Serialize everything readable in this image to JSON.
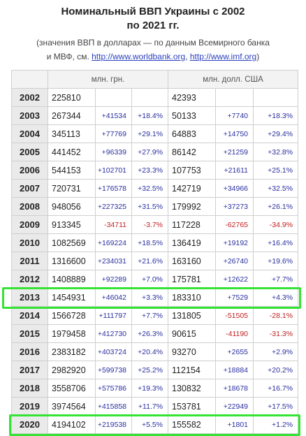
{
  "title": {
    "line1": "Номинальный ВВП Украины с 2002",
    "line2": "по 2021 гг."
  },
  "note": {
    "line1": "(значения ВВП в долларах — по данным Всемирного банка",
    "line2_prefix": "и МВФ, см. ",
    "link1": "http://www.worldbank.org",
    "sep": ", ",
    "link2": "http://www.imf.org",
    "suffix": ")"
  },
  "table": {
    "headers": {
      "uah": "млн. грн.",
      "usd": "млн. долл. США"
    },
    "rows": [
      {
        "year": "2002",
        "uah": "225810",
        "uah_diff": "",
        "uah_pct": "",
        "usd": "42393",
        "usd_diff": "",
        "usd_pct": "",
        "uah_neg": false,
        "usd_neg": false
      },
      {
        "year": "2003",
        "uah": "267344",
        "uah_diff": "+41534",
        "uah_pct": "+18.4%",
        "usd": "50133",
        "usd_diff": "+7740",
        "usd_pct": "+18.3%",
        "uah_neg": false,
        "usd_neg": false
      },
      {
        "year": "2004",
        "uah": "345113",
        "uah_diff": "+77769",
        "uah_pct": "+29.1%",
        "usd": "64883",
        "usd_diff": "+14750",
        "usd_pct": "+29.4%",
        "uah_neg": false,
        "usd_neg": false
      },
      {
        "year": "2005",
        "uah": "441452",
        "uah_diff": "+96339",
        "uah_pct": "+27.9%",
        "usd": "86142",
        "usd_diff": "+21259",
        "usd_pct": "+32.8%",
        "uah_neg": false,
        "usd_neg": false
      },
      {
        "year": "2006",
        "uah": "544153",
        "uah_diff": "+102701",
        "uah_pct": "+23.3%",
        "usd": "107753",
        "usd_diff": "+21611",
        "usd_pct": "+25.1%",
        "uah_neg": false,
        "usd_neg": false
      },
      {
        "year": "2007",
        "uah": "720731",
        "uah_diff": "+176578",
        "uah_pct": "+32.5%",
        "usd": "142719",
        "usd_diff": "+34966",
        "usd_pct": "+32.5%",
        "uah_neg": false,
        "usd_neg": false
      },
      {
        "year": "2008",
        "uah": "948056",
        "uah_diff": "+227325",
        "uah_pct": "+31.5%",
        "usd": "179992",
        "usd_diff": "+37273",
        "usd_pct": "+26.1%",
        "uah_neg": false,
        "usd_neg": false
      },
      {
        "year": "2009",
        "uah": "913345",
        "uah_diff": "-34711",
        "uah_pct": "-3.7%",
        "usd": "117228",
        "usd_diff": "-62765",
        "usd_pct": "-34.9%",
        "uah_neg": true,
        "usd_neg": true
      },
      {
        "year": "2010",
        "uah": "1082569",
        "uah_diff": "+169224",
        "uah_pct": "+18.5%",
        "usd": "136419",
        "usd_diff": "+19192",
        "usd_pct": "+16.4%",
        "uah_neg": false,
        "usd_neg": false
      },
      {
        "year": "2011",
        "uah": "1316600",
        "uah_diff": "+234031",
        "uah_pct": "+21.6%",
        "usd": "163160",
        "usd_diff": "+26740",
        "usd_pct": "+19.6%",
        "uah_neg": false,
        "usd_neg": false
      },
      {
        "year": "2012",
        "uah": "1408889",
        "uah_diff": "+92289",
        "uah_pct": "+7.0%",
        "usd": "175781",
        "usd_diff": "+12622",
        "usd_pct": "+7.7%",
        "uah_neg": false,
        "usd_neg": false
      },
      {
        "year": "2013",
        "uah": "1454931",
        "uah_diff": "+46042",
        "uah_pct": "+3.3%",
        "usd": "183310",
        "usd_diff": "+7529",
        "usd_pct": "+4.3%",
        "uah_neg": false,
        "usd_neg": false
      },
      {
        "year": "2014",
        "uah": "1566728",
        "uah_diff": "+111797",
        "uah_pct": "+7.7%",
        "usd": "131805",
        "usd_diff": "-51505",
        "usd_pct": "-28.1%",
        "uah_neg": false,
        "usd_neg": true
      },
      {
        "year": "2015",
        "uah": "1979458",
        "uah_diff": "+412730",
        "uah_pct": "+26.3%",
        "usd": "90615",
        "usd_diff": "-41190",
        "usd_pct": "-31.3%",
        "uah_neg": false,
        "usd_neg": true
      },
      {
        "year": "2016",
        "uah": "2383182",
        "uah_diff": "+403724",
        "uah_pct": "+20.4%",
        "usd": "93270",
        "usd_diff": "+2655",
        "usd_pct": "+2.9%",
        "uah_neg": false,
        "usd_neg": false
      },
      {
        "year": "2017",
        "uah": "2982920",
        "uah_diff": "+599738",
        "uah_pct": "+25.2%",
        "usd": "112154",
        "usd_diff": "+18884",
        "usd_pct": "+20.2%",
        "uah_neg": false,
        "usd_neg": false
      },
      {
        "year": "2018",
        "uah": "3558706",
        "uah_diff": "+575786",
        "uah_pct": "+19.3%",
        "usd": "130832",
        "usd_diff": "+18678",
        "usd_pct": "+16.7%",
        "uah_neg": false,
        "usd_neg": false
      },
      {
        "year": "2019",
        "uah": "3974564",
        "uah_diff": "+415858",
        "uah_pct": "+11.7%",
        "usd": "153781",
        "usd_diff": "+22949",
        "usd_pct": "+17.5%",
        "uah_neg": false,
        "usd_neg": false
      },
      {
        "year": "2020",
        "uah": "4194102",
        "uah_diff": "+219538",
        "uah_pct": "+5.5%",
        "usd": "155582",
        "usd_diff": "+1801",
        "usd_pct": "+1.2%",
        "uah_neg": false,
        "usd_neg": false
      }
    ],
    "highlighted_years": [
      "2013",
      "2020"
    ]
  },
  "colors": {
    "positive": "#2a2f9f",
    "negative": "#c02020",
    "highlight": "#35e335",
    "link": "#2a3fbf"
  }
}
